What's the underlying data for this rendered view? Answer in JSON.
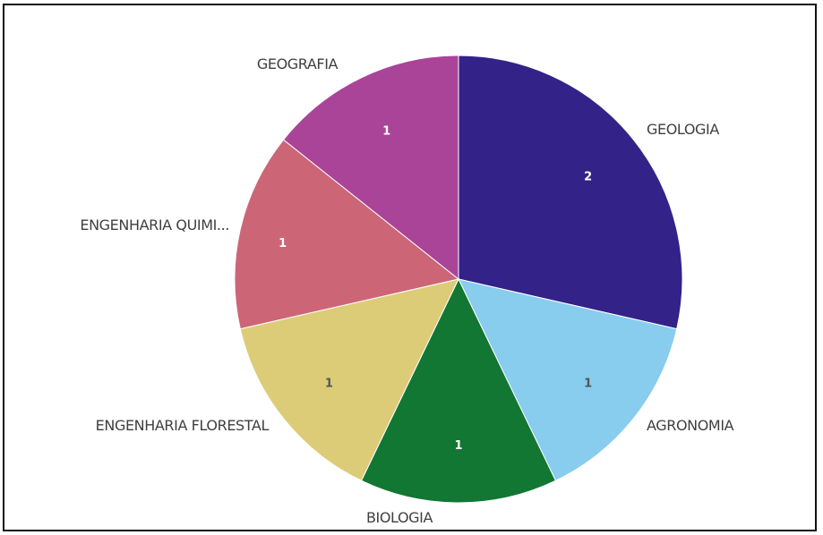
{
  "chart_data": {
    "type": "pie",
    "title": "",
    "categories": [
      "GEOLOGIA",
      "AGRONOMIA",
      "BIOLOGIA",
      "ENGENHARIA FLORESTAL",
      "ENGENHARIA QUIMI...",
      "GEOGRAFIA"
    ],
    "values": [
      2,
      1,
      1,
      1,
      1,
      1
    ],
    "value_labels": [
      "2",
      "1",
      "1",
      "1",
      "1",
      "1"
    ],
    "colors": [
      "#332288",
      "#88ccee",
      "#117733",
      "#ddcc77",
      "#cc6677",
      "#aa4499"
    ],
    "value_label_colors": [
      "#ffffff",
      "#555555",
      "#ffffff",
      "#555555",
      "#ffffff",
      "#ffffff"
    ],
    "legend": "none",
    "start_angle_deg": 0,
    "direction": "clockwise"
  }
}
